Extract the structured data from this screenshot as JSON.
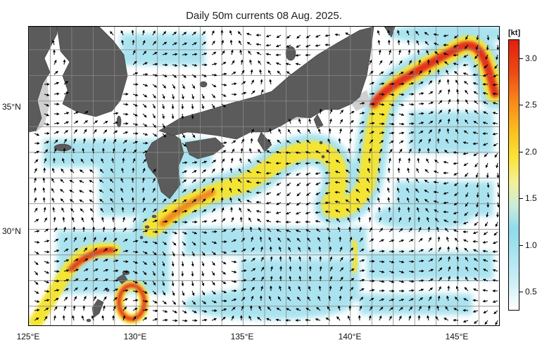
{
  "title": "Daily 50m currents 08 Aug. 2025.",
  "lat_labels": [
    "35°N",
    "30°N"
  ],
  "lon_labels": [
    "125°E",
    "130°E",
    "135°E",
    "140°E",
    "145°E"
  ],
  "colorbar": {
    "unit": "[kt]",
    "ticks": [
      "0.5",
      "1.0",
      "1.5",
      "2.0",
      "2.5",
      "3.0"
    ],
    "tick_values": [
      0.5,
      1.0,
      1.5,
      2.0,
      2.5,
      3.0
    ],
    "range": [
      0.3,
      3.2
    ]
  },
  "extent": {
    "lon": [
      125,
      147
    ],
    "lat": [
      26.2,
      37.9
    ]
  },
  "colors": {
    "land": "#5a5a5a",
    "shelf": "#c8c8c8",
    "ocean": "#ffffff",
    "weak_current": "#9fdfee",
    "moderate_current": "#f5e23a",
    "strong_current": "#e0261a"
  }
}
